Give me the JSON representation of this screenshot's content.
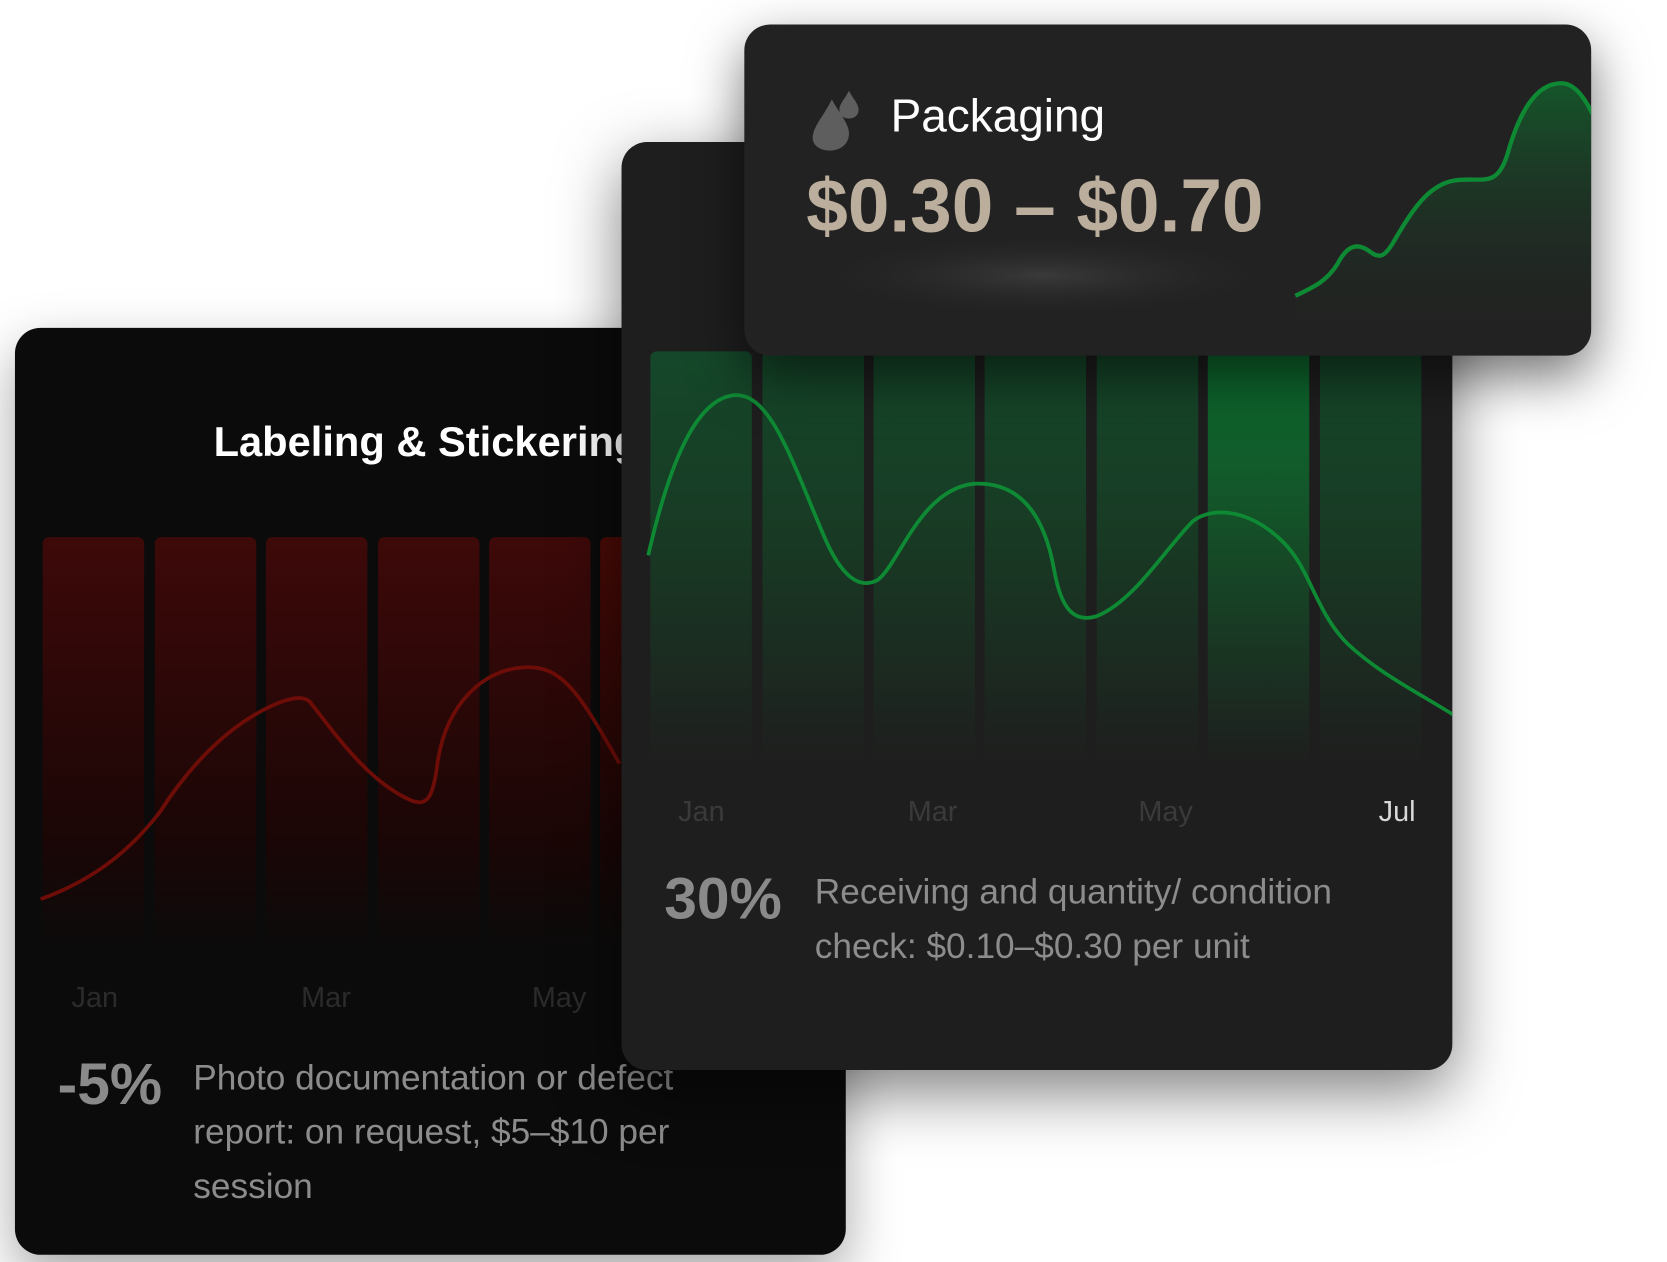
{
  "labeling_card": {
    "title": "Labeling & Stickering",
    "months": [
      "Jan",
      "Mar",
      "May"
    ],
    "change": "-5%",
    "description": "Photo documentation or defect report: on request, $5–$10 per session",
    "accent_color": "#6e0d08"
  },
  "receiving_card": {
    "months": [
      "Jan",
      "Mar",
      "May",
      "Jul"
    ],
    "change": "30%",
    "description": "Receiving and quantity/ condition check: $0.10–$0.30 per unit",
    "accent_color": "#0f8a34"
  },
  "packaging_card": {
    "icon": "droplets-icon",
    "title": "Packaging",
    "price_range": "$0.30 – $0.70",
    "price_color": "#bcae9c",
    "accent_color": "#0f8a34"
  }
}
